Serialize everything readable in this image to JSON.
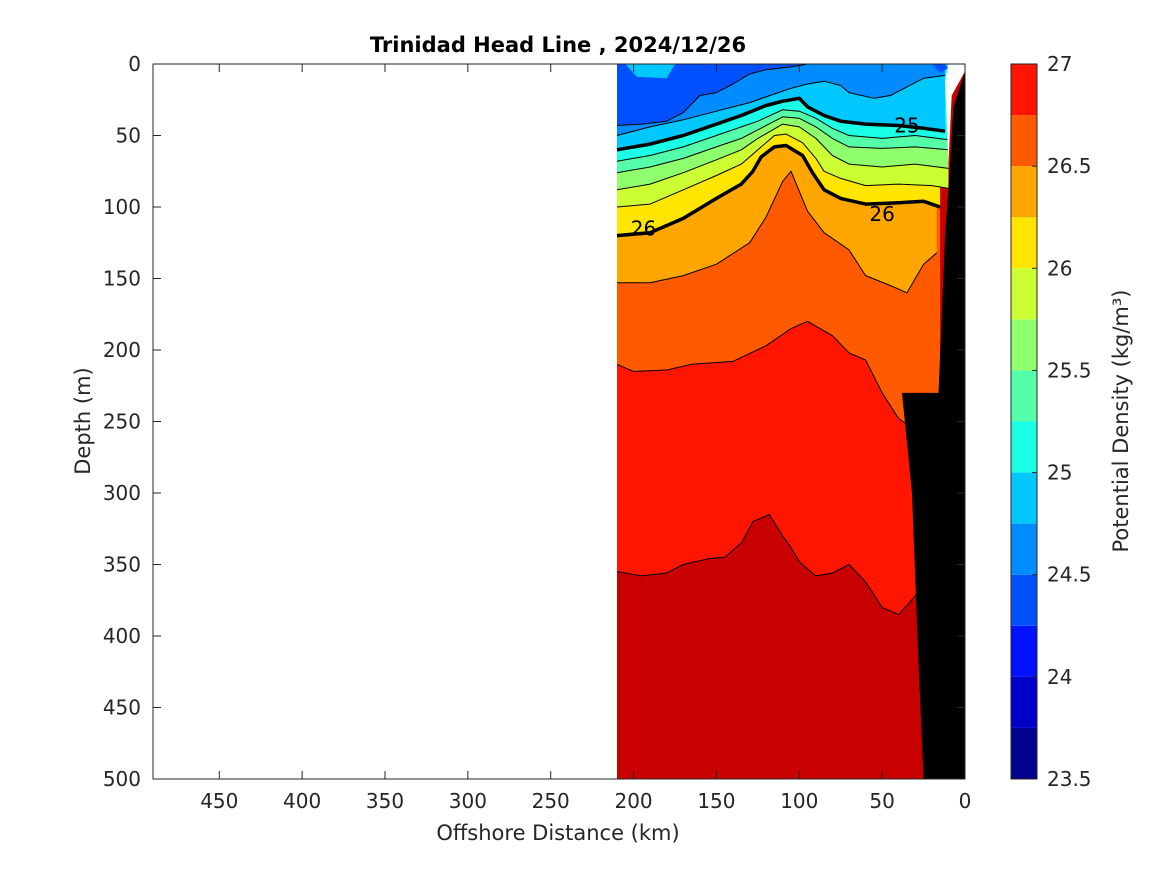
{
  "chart_data": {
    "type": "contour",
    "title": "Trinidad Head Line , 2024/12/26",
    "xlabel": "Offshore Distance (km)",
    "ylabel": "Depth (m)",
    "colorbar_label": "Potential Density (kg/m³)",
    "xlim": [
      490,
      0
    ],
    "ylim": [
      0,
      500
    ],
    "x_ticks": [
      450,
      400,
      350,
      300,
      250,
      200,
      150,
      100,
      50,
      0
    ],
    "y_ticks": [
      0,
      50,
      100,
      150,
      200,
      250,
      300,
      350,
      400,
      450,
      500
    ],
    "colorbar_ticks": [
      27,
      26.5,
      26,
      25.5,
      25,
      24.5,
      24,
      23.5
    ],
    "colorbar_range": [
      23.5,
      27
    ],
    "levels": [
      23.5,
      23.75,
      24,
      24.25,
      24.5,
      24.75,
      25,
      25.25,
      25.5,
      25.75,
      26,
      26.25,
      26.5,
      26.75,
      27
    ],
    "level_colors": [
      "#00008f",
      "#0000c8",
      "#0012ff",
      "#0050ff",
      "#008cff",
      "#00c8ff",
      "#1affe5",
      "#55ffaa",
      "#90ff6e",
      "#ccff33",
      "#ffe500",
      "#ffa600",
      "#ff5a00",
      "#ff1500",
      "#c80000"
    ],
    "data_extent_km": [
      210,
      0
    ],
    "contour_lines": [
      {
        "level": 27,
        "label": "",
        "bold": false,
        "points": [
          [
            210,
            355
          ],
          [
            195,
            358
          ],
          [
            180,
            356
          ],
          [
            170,
            350
          ],
          [
            155,
            346
          ],
          [
            145,
            345
          ],
          [
            135,
            335
          ],
          [
            128,
            320
          ],
          [
            118,
            315
          ],
          [
            110,
            330
          ],
          [
            105,
            338
          ],
          [
            100,
            348
          ],
          [
            95,
            353
          ],
          [
            90,
            358
          ],
          [
            80,
            356
          ],
          [
            70,
            350
          ],
          [
            60,
            362
          ],
          [
            50,
            380
          ],
          [
            40,
            385
          ],
          [
            30,
            372
          ],
          [
            24,
            360
          ]
        ]
      },
      {
        "level": 26.75,
        "label": "",
        "bold": false,
        "points": [
          [
            210,
            210
          ],
          [
            200,
            215
          ],
          [
            180,
            214
          ],
          [
            165,
            210
          ],
          [
            140,
            208
          ],
          [
            120,
            197
          ],
          [
            105,
            185
          ],
          [
            95,
            180
          ],
          [
            80,
            190
          ],
          [
            70,
            202
          ],
          [
            60,
            207
          ],
          [
            50,
            230
          ],
          [
            40,
            248
          ],
          [
            30,
            256
          ],
          [
            20,
            250
          ],
          [
            15,
            230
          ]
        ]
      },
      {
        "level": 26.5,
        "label": "",
        "bold": false,
        "points": [
          [
            210,
            153
          ],
          [
            190,
            153
          ],
          [
            170,
            148
          ],
          [
            150,
            140
          ],
          [
            130,
            125
          ],
          [
            120,
            107
          ],
          [
            110,
            82
          ],
          [
            105,
            75
          ],
          [
            95,
            103
          ],
          [
            85,
            118
          ],
          [
            70,
            130
          ],
          [
            60,
            148
          ],
          [
            45,
            155
          ],
          [
            35,
            160
          ],
          [
            25,
            140
          ],
          [
            17,
            132
          ]
        ]
      },
      {
        "level": 26.25,
        "label": "26",
        "bold": true,
        "points": [
          [
            210,
            120
          ],
          [
            190,
            118
          ],
          [
            170,
            108
          ],
          [
            150,
            94
          ],
          [
            135,
            84
          ],
          [
            128,
            75
          ],
          [
            123,
            65
          ],
          [
            115,
            58
          ],
          [
            108,
            57
          ],
          [
            98,
            64
          ],
          [
            92,
            76
          ],
          [
            85,
            88
          ],
          [
            75,
            94
          ],
          [
            60,
            98
          ],
          [
            40,
            97
          ],
          [
            25,
            96
          ],
          [
            15,
            100
          ]
        ]
      },
      {
        "level": 26,
        "label": "",
        "bold": false,
        "points": [
          [
            210,
            100
          ],
          [
            190,
            98
          ],
          [
            170,
            88
          ],
          [
            150,
            78
          ],
          [
            135,
            70
          ],
          [
            125,
            60
          ],
          [
            115,
            50
          ],
          [
            108,
            49
          ],
          [
            98,
            55
          ],
          [
            90,
            66
          ],
          [
            85,
            75
          ],
          [
            75,
            80
          ],
          [
            60,
            85
          ],
          [
            40,
            84
          ],
          [
            20,
            85
          ],
          [
            10,
            87
          ]
        ]
      },
      {
        "level": 25.75,
        "label": "",
        "bold": false,
        "points": [
          [
            210,
            88
          ],
          [
            190,
            84
          ],
          [
            170,
            76
          ],
          [
            150,
            67
          ],
          [
            135,
            60
          ],
          [
            125,
            52
          ],
          [
            110,
            42
          ],
          [
            100,
            44
          ],
          [
            90,
            52
          ],
          [
            80,
            64
          ],
          [
            70,
            70
          ],
          [
            50,
            72
          ],
          [
            30,
            70
          ],
          [
            10,
            73
          ]
        ]
      },
      {
        "level": 25.5,
        "label": "",
        "bold": false,
        "points": [
          [
            210,
            76
          ],
          [
            190,
            72
          ],
          [
            170,
            66
          ],
          [
            150,
            58
          ],
          [
            135,
            52
          ],
          [
            125,
            46
          ],
          [
            110,
            37
          ],
          [
            100,
            38
          ],
          [
            90,
            44
          ],
          [
            80,
            52
          ],
          [
            70,
            58
          ],
          [
            50,
            59
          ],
          [
            30,
            58
          ],
          [
            10,
            60
          ]
        ]
      },
      {
        "level": 25.25,
        "label": "",
        "bold": false,
        "points": [
          [
            210,
            68
          ],
          [
            190,
            64
          ],
          [
            170,
            58
          ],
          [
            150,
            50
          ],
          [
            135,
            44
          ],
          [
            125,
            40
          ],
          [
            110,
            32
          ],
          [
            100,
            33
          ],
          [
            90,
            38
          ],
          [
            80,
            45
          ],
          [
            70,
            50
          ],
          [
            50,
            52
          ],
          [
            30,
            50
          ],
          [
            10,
            53
          ]
        ]
      },
      {
        "level": 25,
        "label": "25",
        "bold": true,
        "points": [
          [
            210,
            60
          ],
          [
            190,
            56
          ],
          [
            170,
            50
          ],
          [
            150,
            42
          ],
          [
            135,
            36
          ],
          [
            120,
            29
          ],
          [
            110,
            26
          ],
          [
            100,
            24
          ],
          [
            95,
            30
          ],
          [
            85,
            36
          ],
          [
            75,
            40
          ],
          [
            60,
            42
          ],
          [
            40,
            43
          ],
          [
            25,
            45
          ],
          [
            12,
            47
          ]
        ]
      },
      {
        "level": 24.75,
        "label": "",
        "bold": false,
        "points": [
          [
            210,
            50
          ],
          [
            190,
            44
          ],
          [
            170,
            39
          ],
          [
            150,
            33
          ],
          [
            130,
            27
          ],
          [
            115,
            21
          ],
          [
            105,
            17
          ],
          [
            95,
            14
          ],
          [
            85,
            12
          ],
          [
            75,
            15
          ],
          [
            70,
            20
          ],
          [
            55,
            24
          ],
          [
            45,
            22
          ],
          [
            35,
            16
          ],
          [
            25,
            10
          ],
          [
            12,
            8
          ]
        ]
      },
      {
        "level": 24.5,
        "label": "",
        "bold": false,
        "points": [
          [
            210,
            43
          ],
          [
            195,
            42
          ],
          [
            180,
            40
          ],
          [
            170,
            34
          ],
          [
            160,
            22
          ],
          [
            150,
            20
          ],
          [
            140,
            14
          ],
          [
            130,
            7
          ],
          [
            120,
            4
          ],
          [
            105,
            2
          ],
          [
            95,
            0
          ]
        ]
      }
    ],
    "contour_labels": [
      {
        "text": "26",
        "at": [
          194,
          115
        ]
      },
      {
        "text": "26",
        "at": [
          50,
          105
        ]
      },
      {
        "text": "25",
        "at": [
          35,
          43
        ]
      }
    ],
    "bathymetry_polygon": [
      [
        0,
        5
      ],
      [
        0,
        500
      ],
      [
        25,
        500
      ],
      [
        28,
        420
      ],
      [
        32,
        300
      ],
      [
        38,
        230
      ],
      [
        16,
        230
      ],
      [
        12,
        120
      ],
      [
        9,
        70
      ],
      [
        7,
        30
      ]
    ]
  }
}
